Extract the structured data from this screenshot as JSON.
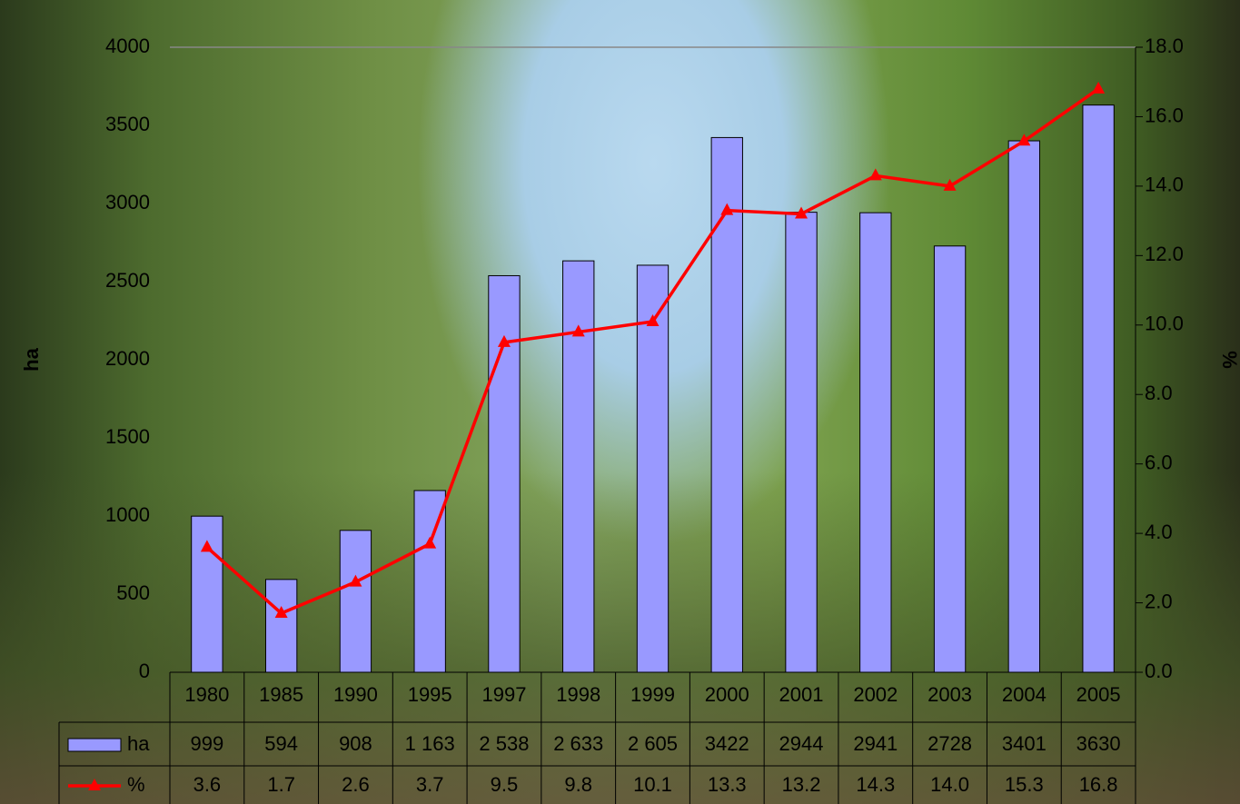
{
  "chart_data": {
    "type": "bar",
    "categories": [
      "1980",
      "1985",
      "1990",
      "1995",
      "1997",
      "1998",
      "1999",
      "2000",
      "2001",
      "2002",
      "2003",
      "2004",
      "2005"
    ],
    "series": [
      {
        "name": "ha",
        "type": "bar",
        "color": "#9999ff",
        "values": [
          999,
          594,
          908,
          1163,
          2538,
          2633,
          2605,
          3422,
          2944,
          2941,
          2728,
          3401,
          3630
        ],
        "value_labels": [
          "999",
          "594",
          "908",
          "1 163",
          "2 538",
          "2 633",
          "2 605",
          "3422",
          "2944",
          "2941",
          "2728",
          "3401",
          "3630"
        ]
      },
      {
        "name": "%",
        "type": "line",
        "axis": "y2",
        "color": "#ff0000",
        "values": [
          3.6,
          1.7,
          2.6,
          3.7,
          9.5,
          9.8,
          10.1,
          13.3,
          13.2,
          14.3,
          14.0,
          15.3,
          16.8
        ],
        "value_labels": [
          "3.6",
          "1.7",
          "2.6",
          "3.7",
          "9.5",
          "9.8",
          "10.1",
          "13.3",
          "13.2",
          "14.3",
          "14.0",
          "15.3",
          "16.8"
        ]
      }
    ],
    "ylabel": "ha",
    "y2label": "%",
    "ylim": [
      0,
      4000
    ],
    "yticks": [
      0,
      500,
      1000,
      1500,
      2000,
      2500,
      3000,
      3500,
      4000
    ],
    "y2lim": [
      0,
      18
    ],
    "y2ticks": [
      {
        "value": 0,
        "label": "0.0"
      },
      {
        "value": 2,
        "label": "2.0"
      },
      {
        "value": 4,
        "label": "4.0"
      },
      {
        "value": 6,
        "label": "6.0"
      },
      {
        "value": 8,
        "label": "8.0"
      },
      {
        "value": 10,
        "label": "10.0"
      },
      {
        "value": 12,
        "label": "12.0"
      },
      {
        "value": 14,
        "label": "14.0"
      },
      {
        "value": 16,
        "label": "16.0"
      },
      {
        "value": 18,
        "label": "18.0"
      }
    ],
    "grid": false
  }
}
